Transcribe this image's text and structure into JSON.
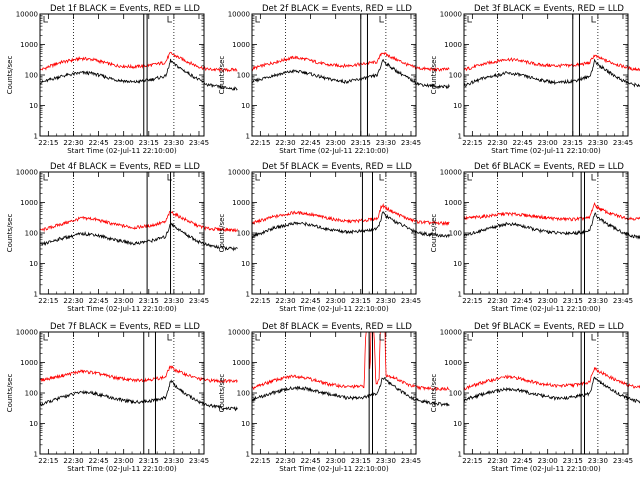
{
  "chart_data": {
    "type": "line",
    "yscale": "log",
    "ylim": [
      1,
      10000
    ],
    "yticks": [
      "1",
      "10",
      "100",
      "1000",
      "10000"
    ],
    "ylabel": "Counts/sec",
    "xlabel": "Start Time (02-Jul-11 22:10:00)",
    "xticks": [
      "22:15",
      "22:30",
      "22:45",
      "23:00",
      "23:15",
      "23:30",
      "23:45"
    ],
    "colors": {
      "events": "#000000",
      "lld": "#ff0000"
    },
    "panels": [
      {
        "title": "Det 1f BLACK = Events, RED = LLD",
        "events": [
          [
            0,
            55
          ],
          [
            12,
            90
          ],
          [
            25,
            120
          ],
          [
            32,
            112
          ],
          [
            45,
            70
          ],
          [
            56,
            58
          ],
          [
            66,
            70
          ],
          [
            75,
            92
          ],
          [
            77,
            180
          ],
          [
            78,
            310
          ],
          [
            80,
            230
          ],
          [
            86,
            140
          ],
          [
            94,
            75
          ],
          [
            100,
            48
          ],
          [
            110,
            38
          ],
          [
            118,
            35
          ]
        ],
        "lld": [
          [
            0,
            145
          ],
          [
            12,
            260
          ],
          [
            25,
            350
          ],
          [
            32,
            320
          ],
          [
            45,
            205
          ],
          [
            56,
            185
          ],
          [
            66,
            210
          ],
          [
            75,
            260
          ],
          [
            77,
            440
          ],
          [
            78,
            520
          ],
          [
            80,
            450
          ],
          [
            86,
            310
          ],
          [
            94,
            195
          ],
          [
            100,
            155
          ],
          [
            110,
            145
          ],
          [
            118,
            150
          ]
        ]
      },
      {
        "title": "Det 2f BLACK = Events, RED = LLD",
        "events": [
          [
            0,
            60
          ],
          [
            12,
            95
          ],
          [
            25,
            135
          ],
          [
            32,
            120
          ],
          [
            45,
            75
          ],
          [
            56,
            60
          ],
          [
            66,
            75
          ],
          [
            75,
            100
          ],
          [
            77,
            190
          ],
          [
            78,
            320
          ],
          [
            80,
            240
          ],
          [
            86,
            140
          ],
          [
            94,
            75
          ],
          [
            100,
            50
          ],
          [
            110,
            42
          ],
          [
            118,
            42
          ]
        ],
        "lld": [
          [
            0,
            160
          ],
          [
            12,
            250
          ],
          [
            25,
            380
          ],
          [
            32,
            330
          ],
          [
            45,
            215
          ],
          [
            56,
            200
          ],
          [
            66,
            230
          ],
          [
            75,
            270
          ],
          [
            77,
            480
          ],
          [
            78,
            560
          ],
          [
            80,
            470
          ],
          [
            86,
            330
          ],
          [
            94,
            205
          ],
          [
            100,
            165
          ],
          [
            110,
            150
          ],
          [
            118,
            155
          ]
        ]
      },
      {
        "title": "Det 3f BLACK = Events, RED = LLD",
        "events": [
          [
            0,
            45
          ],
          [
            12,
            80
          ],
          [
            25,
            115
          ],
          [
            32,
            105
          ],
          [
            45,
            70
          ],
          [
            56,
            55
          ],
          [
            66,
            65
          ],
          [
            75,
            88
          ],
          [
            77,
            170
          ],
          [
            78,
            300
          ],
          [
            80,
            220
          ],
          [
            86,
            130
          ],
          [
            94,
            70
          ],
          [
            100,
            50
          ],
          [
            110,
            42
          ],
          [
            118,
            45
          ]
        ],
        "lld": [
          [
            0,
            150
          ],
          [
            12,
            230
          ],
          [
            25,
            330
          ],
          [
            32,
            310
          ],
          [
            45,
            215
          ],
          [
            56,
            200
          ],
          [
            66,
            210
          ],
          [
            75,
            250
          ],
          [
            77,
            380
          ],
          [
            78,
            440
          ],
          [
            80,
            380
          ],
          [
            86,
            280
          ],
          [
            94,
            200
          ],
          [
            100,
            160
          ],
          [
            110,
            150
          ],
          [
            118,
            160
          ]
        ]
      },
      {
        "title": "Det 4f BLACK = Events, RED = LLD",
        "events": [
          [
            0,
            40
          ],
          [
            12,
            65
          ],
          [
            25,
            95
          ],
          [
            32,
            90
          ],
          [
            45,
            60
          ],
          [
            56,
            45
          ],
          [
            66,
            55
          ],
          [
            75,
            75
          ],
          [
            77,
            140
          ],
          [
            78,
            220
          ],
          [
            80,
            170
          ],
          [
            86,
            100
          ],
          [
            94,
            55
          ],
          [
            100,
            40
          ],
          [
            110,
            32
          ],
          [
            118,
            30
          ]
        ],
        "lld": [
          [
            0,
            120
          ],
          [
            12,
            190
          ],
          [
            25,
            310
          ],
          [
            32,
            290
          ],
          [
            45,
            190
          ],
          [
            56,
            150
          ],
          [
            66,
            175
          ],
          [
            75,
            230
          ],
          [
            77,
            420
          ],
          [
            78,
            500
          ],
          [
            80,
            430
          ],
          [
            86,
            290
          ],
          [
            94,
            175
          ],
          [
            100,
            140
          ],
          [
            110,
            130
          ],
          [
            118,
            125
          ]
        ]
      },
      {
        "title": "Det 5f BLACK = Events, RED = LLD",
        "events": [
          [
            0,
            75
          ],
          [
            12,
            140
          ],
          [
            25,
            210
          ],
          [
            32,
            200
          ],
          [
            45,
            135
          ],
          [
            56,
            110
          ],
          [
            66,
            115
          ],
          [
            75,
            135
          ],
          [
            77,
            280
          ],
          [
            78,
            480
          ],
          [
            80,
            360
          ],
          [
            86,
            230
          ],
          [
            94,
            140
          ],
          [
            100,
            100
          ],
          [
            110,
            85
          ],
          [
            118,
            80
          ]
        ],
        "lld": [
          [
            0,
            210
          ],
          [
            12,
            330
          ],
          [
            25,
            470
          ],
          [
            32,
            440
          ],
          [
            45,
            310
          ],
          [
            56,
            240
          ],
          [
            66,
            255
          ],
          [
            75,
            300
          ],
          [
            77,
            660
          ],
          [
            78,
            820
          ],
          [
            80,
            660
          ],
          [
            86,
            440
          ],
          [
            94,
            280
          ],
          [
            100,
            230
          ],
          [
            110,
            210
          ],
          [
            118,
            210
          ]
        ]
      },
      {
        "title": "Det 6f BLACK = Events, RED = LLD",
        "events": [
          [
            0,
            80
          ],
          [
            12,
            130
          ],
          [
            25,
            200
          ],
          [
            32,
            185
          ],
          [
            45,
            120
          ],
          [
            56,
            100
          ],
          [
            66,
            100
          ],
          [
            75,
            115
          ],
          [
            77,
            260
          ],
          [
            78,
            450
          ],
          [
            80,
            320
          ],
          [
            86,
            190
          ],
          [
            94,
            110
          ],
          [
            100,
            80
          ],
          [
            110,
            65
          ],
          [
            118,
            68
          ]
        ],
        "lld": [
          [
            0,
            300
          ],
          [
            12,
            350
          ],
          [
            25,
            430
          ],
          [
            32,
            410
          ],
          [
            45,
            340
          ],
          [
            56,
            290
          ],
          [
            66,
            285
          ],
          [
            75,
            310
          ],
          [
            77,
            680
          ],
          [
            78,
            850
          ],
          [
            80,
            680
          ],
          [
            86,
            460
          ],
          [
            94,
            340
          ],
          [
            100,
            300
          ],
          [
            110,
            280
          ],
          [
            118,
            290
          ]
        ]
      },
      {
        "title": "Det 7f BLACK = Events, RED = LLD",
        "events": [
          [
            0,
            40
          ],
          [
            12,
            70
          ],
          [
            25,
            110
          ],
          [
            32,
            100
          ],
          [
            45,
            65
          ],
          [
            56,
            50
          ],
          [
            66,
            55
          ],
          [
            75,
            70
          ],
          [
            77,
            150
          ],
          [
            78,
            260
          ],
          [
            80,
            190
          ],
          [
            86,
            100
          ],
          [
            94,
            55
          ],
          [
            100,
            40
          ],
          [
            110,
            32
          ],
          [
            118,
            30
          ]
        ],
        "lld": [
          [
            0,
            260
          ],
          [
            12,
            360
          ],
          [
            25,
            520
          ],
          [
            32,
            470
          ],
          [
            45,
            320
          ],
          [
            56,
            260
          ],
          [
            66,
            280
          ],
          [
            75,
            330
          ],
          [
            77,
            620
          ],
          [
            78,
            760
          ],
          [
            80,
            600
          ],
          [
            86,
            430
          ],
          [
            94,
            300
          ],
          [
            100,
            260
          ],
          [
            110,
            250
          ],
          [
            118,
            260
          ]
        ]
      },
      {
        "title": "Det 8f BLACK = Events, RED = LLD",
        "events": [
          [
            0,
            60
          ],
          [
            12,
            100
          ],
          [
            25,
            150
          ],
          [
            32,
            140
          ],
          [
            45,
            95
          ],
          [
            56,
            70
          ],
          [
            66,
            70
          ],
          [
            68,
            75
          ],
          [
            72,
            85
          ],
          [
            75,
            105
          ],
          [
            77,
            200
          ],
          [
            78,
            330
          ],
          [
            80,
            260
          ],
          [
            86,
            150
          ],
          [
            94,
            75
          ],
          [
            100,
            55
          ],
          [
            110,
            45
          ],
          [
            118,
            40
          ]
        ],
        "lld": [
          [
            0,
            140
          ],
          [
            12,
            250
          ],
          [
            25,
            370
          ],
          [
            32,
            320
          ],
          [
            45,
            200
          ],
          [
            56,
            160
          ],
          [
            66,
            165
          ],
          [
            67,
            170
          ],
          [
            68,
            10000
          ],
          [
            70,
            10000
          ],
          [
            70.5,
            200
          ],
          [
            71,
            10000
          ],
          [
            73,
            10000
          ],
          [
            74,
            190
          ],
          [
            75,
            230
          ],
          [
            76,
            260
          ],
          [
            76.5,
            10000
          ],
          [
            79,
            10000
          ],
          [
            79.5,
            10000
          ],
          [
            80,
            400
          ],
          [
            86,
            300
          ],
          [
            94,
            180
          ],
          [
            100,
            150
          ],
          [
            110,
            140
          ],
          [
            118,
            140
          ]
        ]
      },
      {
        "title": "Det 9f BLACK = Events, RED = LLD",
        "events": [
          [
            0,
            60
          ],
          [
            12,
            95
          ],
          [
            25,
            135
          ],
          [
            32,
            125
          ],
          [
            45,
            85
          ],
          [
            56,
            65
          ],
          [
            66,
            75
          ],
          [
            75,
            95
          ],
          [
            77,
            200
          ],
          [
            78,
            340
          ],
          [
            80,
            250
          ],
          [
            86,
            150
          ],
          [
            94,
            85
          ],
          [
            100,
            60
          ],
          [
            110,
            45
          ],
          [
            118,
            38
          ]
        ],
        "lld": [
          [
            0,
            140
          ],
          [
            12,
            230
          ],
          [
            25,
            340
          ],
          [
            32,
            310
          ],
          [
            45,
            210
          ],
          [
            56,
            170
          ],
          [
            66,
            185
          ],
          [
            75,
            230
          ],
          [
            77,
            520
          ],
          [
            78,
            680
          ],
          [
            80,
            540
          ],
          [
            86,
            360
          ],
          [
            94,
            220
          ],
          [
            100,
            170
          ],
          [
            110,
            140
          ],
          [
            118,
            130
          ]
        ]
      }
    ]
  }
}
